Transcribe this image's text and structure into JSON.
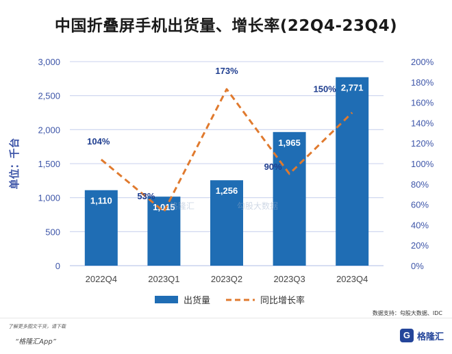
{
  "title": "中国折叠屏手机出货量、增长率(22Q4-23Q4)",
  "source": "数据支持：勾股大数据、IDC",
  "footer": {
    "line1": "了解更多图文干货，请下载",
    "line2": "“格隆汇App”",
    "logo_mark": "G",
    "logo_text": "格隆汇"
  },
  "watermarks": [
    "格隆汇",
    "勾股大数据"
  ],
  "colors": {
    "bar": "#1f6db4",
    "line": "#e07a2e",
    "axis_text": "#3d55a8",
    "grid": "#c9d2ee"
  },
  "chart_data": {
    "type": "bar",
    "categories": [
      "2022Q4",
      "2023Q1",
      "2023Q2",
      "2023Q3",
      "2023Q4"
    ],
    "series": [
      {
        "name": "出货量",
        "type": "bar",
        "axis": "left",
        "values": [
          1110,
          1015,
          1256,
          1965,
          2771
        ],
        "labels": [
          "1,110",
          "1,015",
          "1,256",
          "1,965",
          "2,771"
        ]
      },
      {
        "name": "同比增长率",
        "type": "line",
        "style": "dashed",
        "axis": "right",
        "values": [
          104,
          53,
          173,
          90,
          150
        ],
        "labels": [
          "104%",
          "53%",
          "173%",
          "90%",
          "150%"
        ]
      }
    ],
    "ylabel": "单位：千台",
    "ylim": [
      0,
      3000
    ],
    "yticks": [
      "0",
      "500",
      "1,000",
      "1,500",
      "2,000",
      "2,500",
      "3,000"
    ],
    "y2lim": [
      0,
      200
    ],
    "y2ticks": [
      "0%",
      "20%",
      "40%",
      "60%",
      "80%",
      "100%",
      "120%",
      "140%",
      "160%",
      "180%",
      "200%"
    ],
    "grid": true,
    "legend_position": "bottom"
  }
}
